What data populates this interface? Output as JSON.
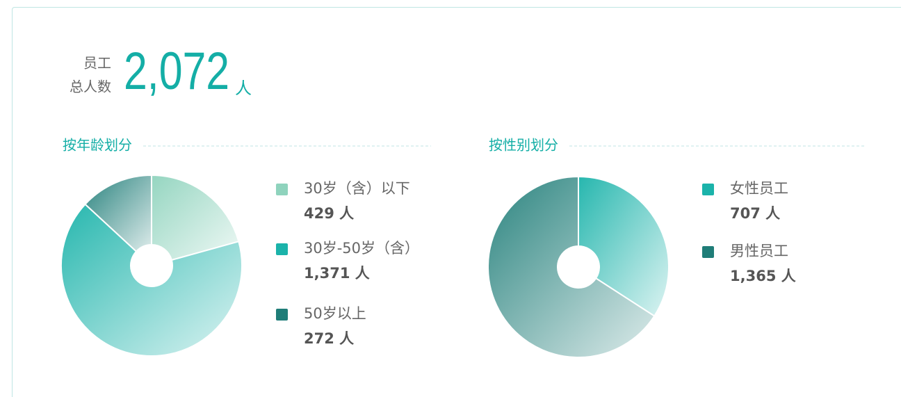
{
  "header": {
    "label_line1": "员工",
    "label_line2": "总人数",
    "total": "2,072",
    "unit": "人"
  },
  "chart_data": [
    {
      "type": "pie",
      "title": "按年龄划分",
      "categories": [
        "30岁（含）以下",
        "30岁-50岁（含）",
        "50岁以上"
      ],
      "values": [
        429,
        1371,
        272
      ],
      "value_labels": [
        "429 人",
        "1,371 人",
        "272 人"
      ],
      "colors": [
        "#8fd3bd",
        "#1bb3aa",
        "#1f7d78"
      ]
    },
    {
      "type": "pie",
      "title": "按性别划分",
      "categories": [
        "女性员工",
        "男性员工"
      ],
      "values": [
        707,
        1365
      ],
      "value_labels": [
        "707 人",
        "1,365 人"
      ],
      "colors": [
        "#1bb3aa",
        "#1f7d78"
      ]
    }
  ]
}
